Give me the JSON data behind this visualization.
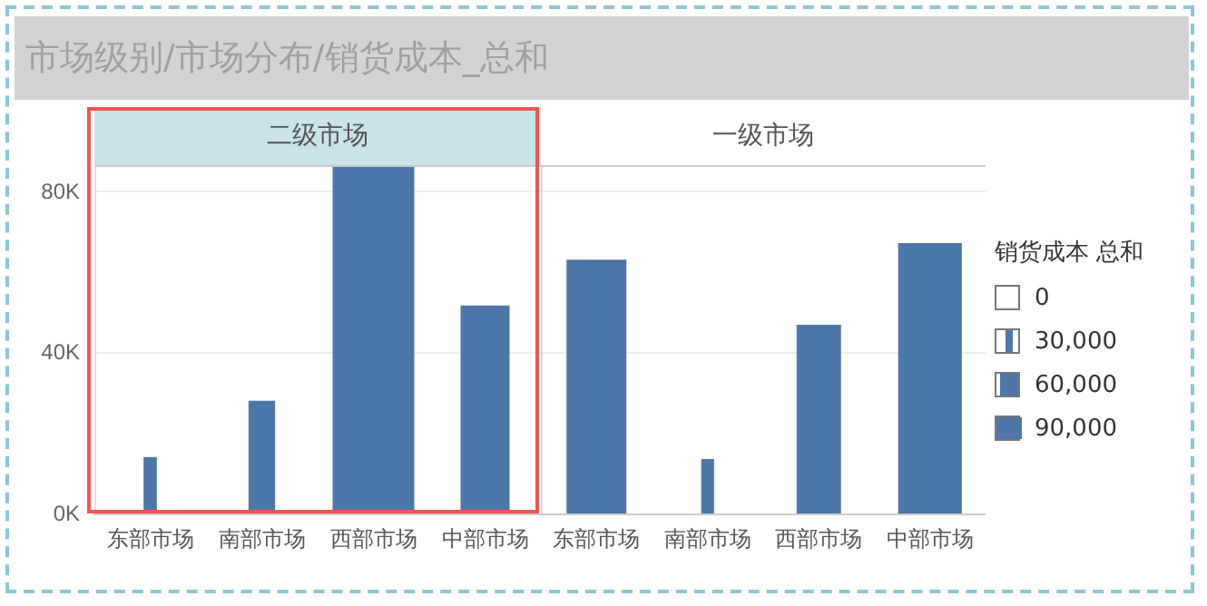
{
  "chart_data": [
    {
      "type": "bar",
      "title": "市场级别/市场分布/销货成本_总和",
      "subtitle": "二级市场",
      "categories": [
        "东部市场",
        "南部市场",
        "西部市场",
        "中部市场"
      ],
      "series": [
        {
          "color": "#4c77a8",
          "values": [
            14000,
            28000,
            86000,
            51600
          ]
        }
      ],
      "ylim": [
        0,
        86000
      ],
      "yticks": [
        {
          "value": 0,
          "label": "0K"
        },
        {
          "value": 40000,
          "label": "40K"
        },
        {
          "value": 80000,
          "label": "80K"
        }
      ],
      "grid": "y"
    },
    {
      "type": "bar",
      "subtitle": "一级市场",
      "categories": [
        "东部市场",
        "南部市场",
        "西部市场",
        "中部市场"
      ],
      "series": [
        {
          "color": "#4c77a8",
          "values": [
            63000,
            13500,
            46800,
            67100
          ]
        }
      ],
      "ylim": [
        0,
        86000
      ],
      "yticks": [
        0,
        40000,
        80000
      ],
      "grid": "y",
      "tick_labels": "x",
      "legend_title": "销货成本 总和",
      "annotations": [
        "0",
        "30,000",
        "60,000",
        "90,000"
      ]
    }
  ]
}
